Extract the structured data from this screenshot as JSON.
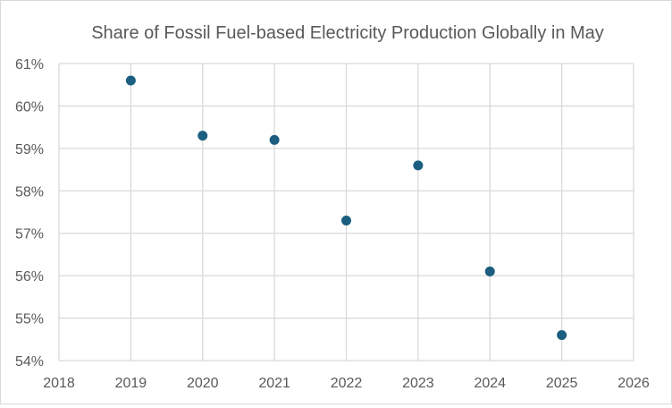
{
  "chart_data": {
    "type": "scatter",
    "title": "Share of Fossil Fuel-based Electricity Production Globally in May",
    "xlabel": "",
    "ylabel": "",
    "x": [
      2019,
      2020,
      2021,
      2022,
      2023,
      2024,
      2025
    ],
    "y": [
      0.606,
      0.593,
      0.592,
      0.573,
      0.586,
      0.561,
      0.546
    ],
    "xlim": [
      2018,
      2026
    ],
    "ylim": [
      0.54,
      0.61
    ],
    "x_ticks": [
      "2018",
      "2019",
      "2020",
      "2021",
      "2022",
      "2023",
      "2024",
      "2025",
      "2026"
    ],
    "y_ticks": [
      "54%",
      "55%",
      "56%",
      "57%",
      "58%",
      "59%",
      "60%",
      "61%"
    ],
    "grid": true,
    "legend": "none",
    "marker_color": "#1b5e80",
    "grid_color": "#d9d9d9",
    "text_color": "#595959"
  }
}
